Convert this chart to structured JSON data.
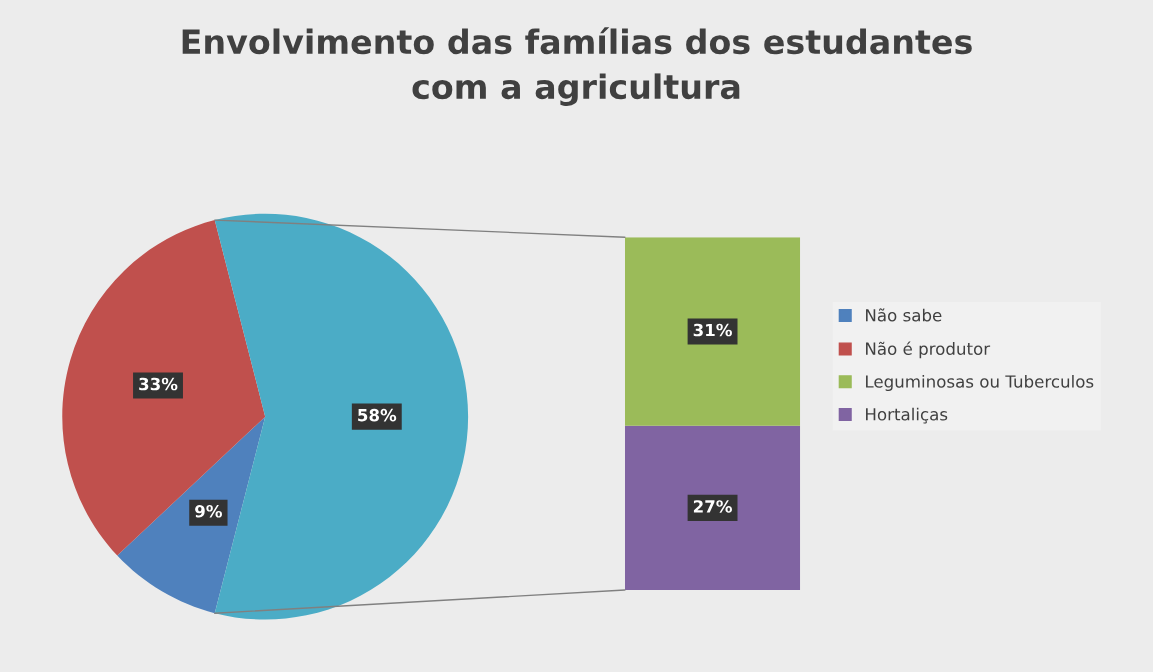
{
  "chart_data": [
    {
      "type": "pie",
      "title": "Envolvimento das famílias dos estudantes\ncom a agricultura",
      "categories": [
        "Não sabe",
        "Não é produtor",
        null
      ],
      "values": [
        9,
        33,
        58
      ],
      "value_labels": [
        "9%",
        "33%",
        "58%"
      ],
      "colors": [
        "#4f81bd",
        "#c0504d",
        "#4bacc6"
      ],
      "legend": "right"
    },
    {
      "type": "bar",
      "stacked": true,
      "categories": [
        null
      ],
      "series": [
        {
          "name": "Hortaliças",
          "color": "#8064a2",
          "values": [
            27
          ],
          "value_labels": [
            "27%"
          ]
        },
        {
          "name": "Leguminosas ou Tuberculos",
          "color": "#9bbb59",
          "values": [
            31
          ],
          "value_labels": [
            "31%"
          ]
        }
      ],
      "legend": "right"
    }
  ]
}
